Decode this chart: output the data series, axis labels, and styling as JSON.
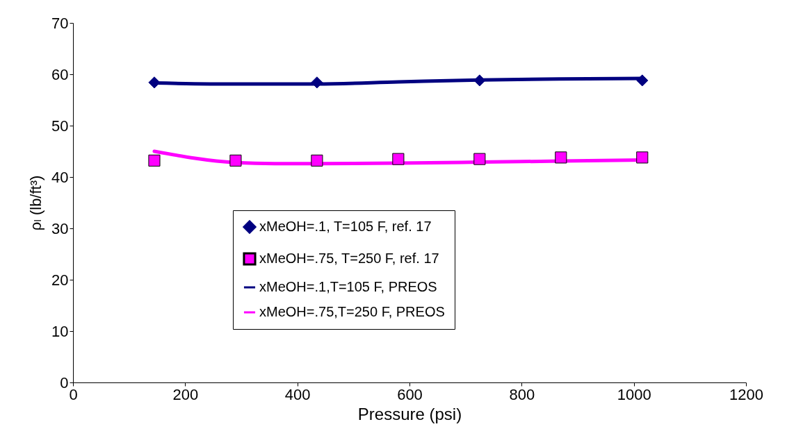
{
  "chart_data": {
    "type": "line",
    "xlabel": "Pressure (psi)",
    "ylabel": "ρₗ (lb/ft³)",
    "xlim": [
      0,
      1200
    ],
    "xticks": [
      0,
      200,
      400,
      600,
      800,
      1000,
      1200
    ],
    "ylim": [
      0,
      70
    ],
    "yticks": [
      0,
      10,
      20,
      30,
      40,
      50,
      60,
      70
    ],
    "grid": false,
    "legend": "center",
    "line_style": "solid",
    "series": [
      {
        "name": "xMeOH=.1, T=105 F, ref. 17",
        "type": "scatter",
        "marker": "diamond",
        "color": "#000080",
        "x": [
          145,
          435,
          725,
          1015
        ],
        "values": [
          58.4,
          58.4,
          58.8,
          58.8
        ]
      },
      {
        "name": "xMeOH=.75, T=250 F, ref. 17",
        "type": "scatter",
        "marker": "square",
        "color": "#ff00ff",
        "x": [
          145,
          290,
          435,
          580,
          725,
          870,
          1015
        ],
        "values": [
          43.2,
          43.2,
          43.2,
          43.5,
          43.5,
          43.8,
          43.8
        ]
      },
      {
        "name": "xMeOH=.1,T=105 F, PREOS",
        "type": "line",
        "marker": "none",
        "color": "#000080",
        "x": [
          145,
          290,
          435,
          580,
          725,
          870,
          1015
        ],
        "values": [
          58.3,
          58.1,
          58.1,
          58.5,
          58.9,
          59.1,
          59.2
        ]
      },
      {
        "name": "xMeOH=.75,T=250 F, PREOS",
        "type": "line",
        "marker": "none",
        "color": "#ff00ff",
        "x": [
          145,
          290,
          360,
          435,
          580,
          725,
          870,
          1015
        ],
        "values": [
          45.0,
          42.8,
          42.6,
          42.6,
          42.7,
          42.9,
          43.1,
          43.3
        ]
      }
    ]
  }
}
